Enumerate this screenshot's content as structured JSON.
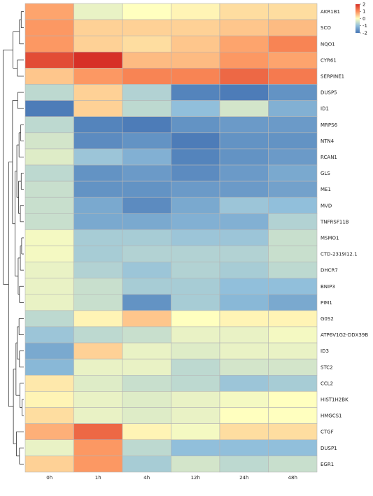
{
  "chart_data": {
    "type": "heatmap",
    "title": "",
    "xlabel": "",
    "ylabel": "",
    "columns": [
      "0h",
      "1h",
      "4h",
      "12h",
      "24h",
      "48h"
    ],
    "rows": [
      "AKR1B1",
      "SCO",
      "NQO1",
      "CYR61",
      "SERPINE1",
      "DUSP5",
      "ID1",
      "MRPS6",
      "NTN4",
      "RCAN1",
      "GLS",
      "ME1",
      "MVD",
      "TNFRSF11B",
      "MSMO1",
      "CTD-2319I12.1",
      "DHCR7",
      "BNIP3",
      "PIM1",
      "G0S2",
      "ATP6V1G2-DDX39B",
      "ID3",
      "STC2",
      "CCL2",
      "HIST1H2BK",
      "HMGCS1",
      "CTGF",
      "DUSP1",
      "EGR1"
    ],
    "values": [
      [
        0.8,
        -0.2,
        0.0,
        0.1,
        0.3,
        0.3
      ],
      [
        0.9,
        0.4,
        0.4,
        0.4,
        0.5,
        0.6
      ],
      [
        0.9,
        0.4,
        0.3,
        0.5,
        0.8,
        1.1
      ],
      [
        1.7,
        2.2,
        0.6,
        0.6,
        0.9,
        0.8
      ],
      [
        0.5,
        0.9,
        1.1,
        1.1,
        1.4,
        1.2
      ],
      [
        -0.6,
        0.4,
        -0.7,
        -1.8,
        -1.9,
        -1.6
      ],
      [
        -1.9,
        0.4,
        -0.6,
        -1.0,
        -0.4,
        -1.2
      ],
      [
        -0.6,
        -1.8,
        -1.9,
        -1.6,
        -1.5,
        -1.5
      ],
      [
        -0.4,
        -1.7,
        -1.6,
        -1.9,
        -1.6,
        -1.6
      ],
      [
        -0.3,
        -0.9,
        -1.2,
        -1.8,
        -1.6,
        -1.5
      ],
      [
        -0.6,
        -1.6,
        -1.5,
        -1.7,
        -1.5,
        -1.3
      ],
      [
        -0.5,
        -1.6,
        -1.6,
        -1.5,
        -1.5,
        -1.4
      ],
      [
        -0.5,
        -1.3,
        -1.7,
        -1.3,
        -0.9,
        -1.0
      ],
      [
        -0.5,
        -1.3,
        -1.3,
        -1.2,
        -1.2,
        -0.7
      ],
      [
        -0.1,
        -0.8,
        -0.8,
        -0.9,
        -0.9,
        -0.5
      ],
      [
        -0.1,
        -0.8,
        -0.7,
        -0.7,
        -0.7,
        -0.5
      ],
      [
        -0.2,
        -0.7,
        -0.9,
        -0.7,
        -0.8,
        -0.6
      ],
      [
        -0.2,
        -0.5,
        -0.8,
        -0.8,
        -1.0,
        -1.0
      ],
      [
        -0.2,
        -0.5,
        -1.6,
        -0.8,
        -1.1,
        -1.3
      ],
      [
        -0.6,
        0.1,
        0.5,
        0.0,
        0.1,
        0.1
      ],
      [
        -0.9,
        -0.6,
        -0.5,
        -0.2,
        -0.2,
        -0.1
      ],
      [
        -1.3,
        0.4,
        -0.2,
        -0.3,
        -0.2,
        -0.2
      ],
      [
        -1.1,
        -0.2,
        -0.2,
        -0.6,
        -0.4,
        -0.4
      ],
      [
        0.2,
        -0.3,
        -0.5,
        -0.6,
        -0.9,
        -0.8
      ],
      [
        0.1,
        -0.2,
        -0.3,
        -0.2,
        -0.1,
        0.0
      ],
      [
        0.3,
        -0.2,
        -0.3,
        -0.2,
        0.0,
        0.0
      ],
      [
        0.7,
        1.4,
        0.1,
        -0.1,
        0.3,
        0.3
      ],
      [
        -0.2,
        0.9,
        -0.6,
        -1.0,
        -1.0,
        -1.0
      ],
      [
        0.4,
        0.9,
        -0.8,
        -0.4,
        -0.6,
        -0.5
      ]
    ],
    "color_scale": {
      "min": -2,
      "max": 2,
      "low_color": "#4575b4",
      "mid_color": "#ffffbf",
      "high_color": "#d73027",
      "ticks": [
        2,
        1,
        0,
        -1,
        -2
      ]
    },
    "row_dendrogram": true,
    "legend_position": "top-right"
  }
}
